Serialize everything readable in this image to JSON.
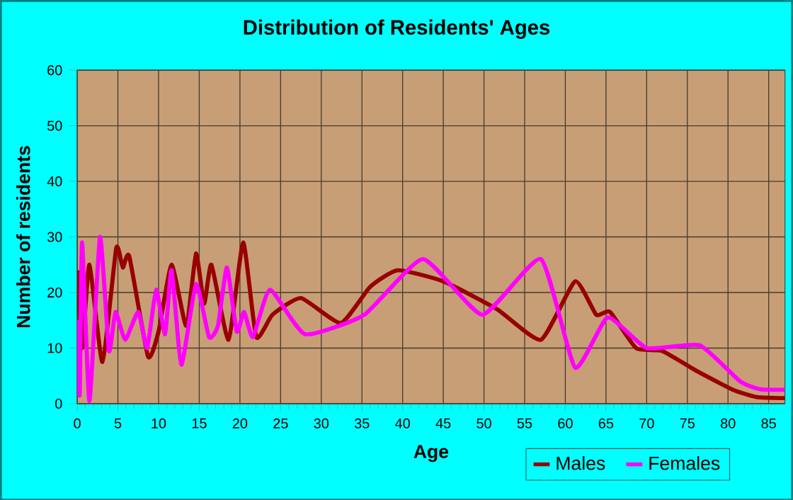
{
  "chart_data": {
    "type": "line",
    "title": "Distribution of Residents' Ages",
    "xlabel": "Age",
    "ylabel": "Number of residents",
    "xlim": [
      0,
      87
    ],
    "ylim": [
      0,
      60
    ],
    "xticks": [
      0,
      5,
      10,
      15,
      20,
      25,
      30,
      35,
      40,
      45,
      50,
      55,
      60,
      65,
      70,
      75,
      80,
      85
    ],
    "yticks": [
      0,
      10,
      20,
      30,
      40,
      50,
      60
    ],
    "grid": true,
    "legend": "bottom right",
    "marker": "none",
    "line_style": "solid",
    "series": [
      {
        "name": "Males",
        "color": "#990000",
        "x": [
          0,
          0.6,
          1.5,
          3.1,
          4.8,
          5.6,
          6.4,
          8.7,
          10,
          11.6,
          13.4,
          14.6,
          15.6,
          16.5,
          18.6,
          20.4,
          22,
          24,
          27.5,
          32.4,
          36,
          39.4,
          45,
          51.6,
          57,
          61.2,
          63.8,
          65.5,
          68.7,
          71.9,
          76,
          80.6,
          83.5,
          87
        ],
        "values": [
          24,
          10,
          25,
          7.5,
          28,
          24.5,
          26.5,
          8.5,
          13,
          25,
          14,
          27,
          18,
          25,
          11.5,
          29,
          12,
          16,
          19,
          14.5,
          21,
          24,
          22,
          17,
          11.5,
          22,
          16,
          16.5,
          10,
          9.5,
          6,
          2.5,
          1.2,
          1
        ]
      },
      {
        "name": "Females",
        "color": "#ff00ff",
        "x": [
          0,
          0.3,
          0.6,
          1.5,
          2.8,
          3.9,
          4.7,
          5.9,
          7.5,
          8.6,
          9.7,
          10.8,
          11.6,
          12.8,
          14.6,
          16.2,
          17.3,
          18.4,
          19.6,
          20.5,
          21.6,
          23.7,
          28,
          35.3,
          42.5,
          49.8,
          57,
          61.2,
          65.2,
          70,
          76.5,
          81.5,
          84,
          87
        ],
        "values": [
          15,
          1.5,
          29,
          0.5,
          30,
          9.5,
          16.5,
          11.5,
          16.5,
          10,
          20.5,
          12.5,
          24,
          7,
          21.5,
          12,
          14,
          24.5,
          13,
          16.5,
          12,
          20.5,
          12.5,
          16,
          26,
          16,
          26,
          6.5,
          15.5,
          10,
          10.5,
          4,
          2.6,
          2.5
        ]
      }
    ]
  }
}
